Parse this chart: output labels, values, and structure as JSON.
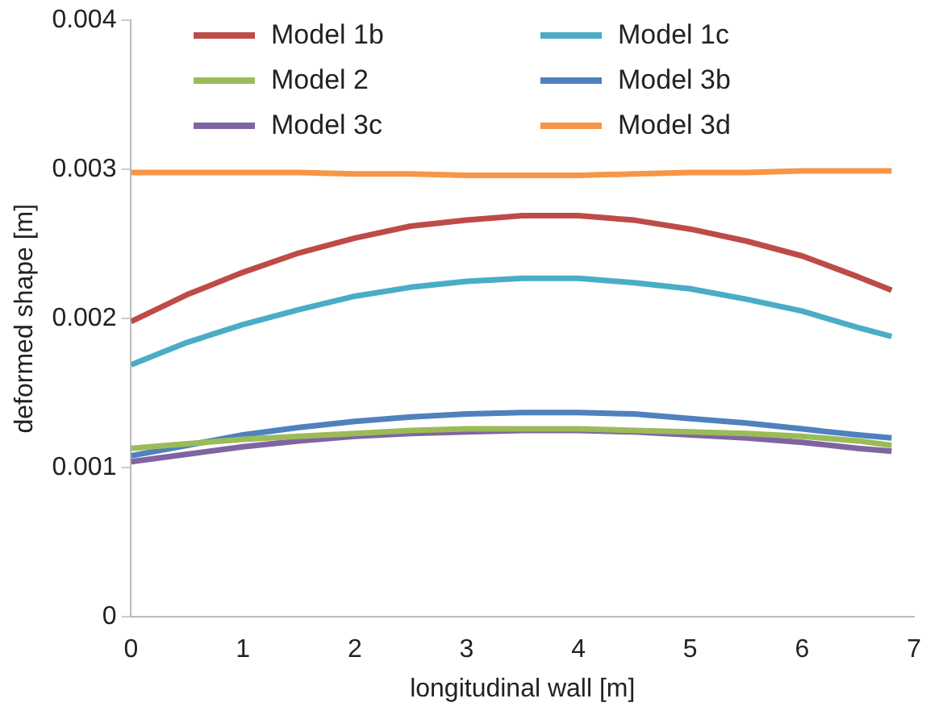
{
  "chart_data": {
    "type": "line",
    "xlabel": "longitudinal wall [m]",
    "ylabel": "deformed shape [m]",
    "x": [
      0,
      0.5,
      1,
      1.5,
      2,
      2.5,
      3,
      3.5,
      4,
      4.5,
      5,
      5.5,
      6,
      6.5,
      6.8
    ],
    "xlim": [
      0,
      7
    ],
    "xticks": [
      0,
      1,
      2,
      3,
      4,
      5,
      6,
      7
    ],
    "ylim": [
      0,
      0.004
    ],
    "yticks": [
      0,
      0.001,
      0.002,
      0.003,
      0.004
    ],
    "grid": false,
    "legend": "top",
    "marker": "none",
    "line_style": "solid",
    "series": [
      {
        "name": "Model 1b",
        "color": "#be4b48",
        "values": [
          0.00198,
          0.00216,
          0.00231,
          0.00244,
          0.00254,
          0.00262,
          0.00266,
          0.00269,
          0.00269,
          0.00266,
          0.0026,
          0.00252,
          0.00242,
          0.00228,
          0.00219
        ]
      },
      {
        "name": "Model 1c",
        "color": "#4bacc6",
        "values": [
          0.00169,
          0.00184,
          0.00196,
          0.00206,
          0.00215,
          0.00221,
          0.00225,
          0.00227,
          0.00227,
          0.00224,
          0.0022,
          0.00213,
          0.00205,
          0.00194,
          0.00188
        ]
      },
      {
        "name": "Model 2",
        "color": "#9bbb59",
        "values": [
          0.00113,
          0.00116,
          0.00119,
          0.00121,
          0.00123,
          0.00125,
          0.00126,
          0.00126,
          0.00126,
          0.00125,
          0.00124,
          0.00123,
          0.00121,
          0.00118,
          0.00115
        ]
      },
      {
        "name": "Model 3b",
        "color": "#4f81bd",
        "values": [
          0.00108,
          0.00115,
          0.00122,
          0.00127,
          0.00131,
          0.00134,
          0.00136,
          0.00137,
          0.00137,
          0.00136,
          0.00133,
          0.0013,
          0.00126,
          0.00122,
          0.0012
        ]
      },
      {
        "name": "Model 3c",
        "color": "#8064a2",
        "values": [
          0.00104,
          0.00109,
          0.00114,
          0.00118,
          0.00121,
          0.00123,
          0.00124,
          0.00125,
          0.00125,
          0.00124,
          0.00122,
          0.0012,
          0.00117,
          0.00113,
          0.00111
        ]
      },
      {
        "name": "Model 3d",
        "color": "#f79646",
        "values": [
          0.00298,
          0.00298,
          0.00298,
          0.00298,
          0.00297,
          0.00297,
          0.00296,
          0.00296,
          0.00296,
          0.00297,
          0.00298,
          0.00298,
          0.00299,
          0.00299,
          0.00299
        ]
      }
    ]
  }
}
